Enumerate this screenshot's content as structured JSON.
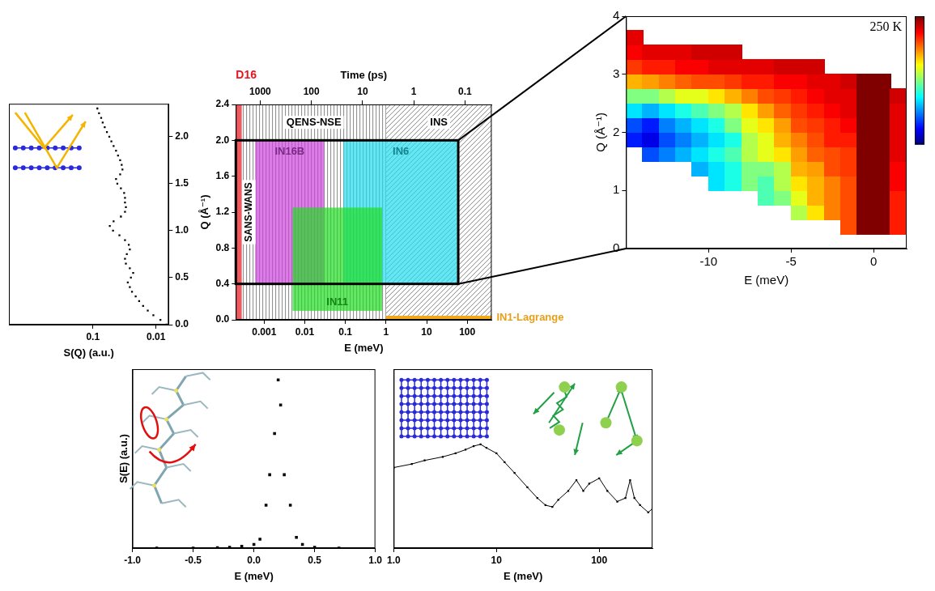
{
  "chart_data": [
    {
      "type": "scatter",
      "x_label": "S(Q) (a.u.)",
      "log": "x",
      "grid": false,
      "color": "#000000",
      "marker": "square",
      "xlim": [
        2.15,
        0.0063
      ],
      "xticks": [
        0.1,
        0.01
      ],
      "ylim": [
        0,
        2.35
      ],
      "yticks": [
        {
          "value": 0,
          "label": "0.0"
        },
        0.5,
        {
          "value": 1,
          "label": "1.0"
        },
        1.5,
        {
          "value": 2,
          "label": "2.0"
        }
      ],
      "x": [
        0.0068,
        0.0085,
        0.011,
        0.0135,
        0.016,
        0.0185,
        0.021,
        0.024,
        0.026,
        0.028,
        0.025,
        0.023,
        0.026,
        0.03,
        0.031,
        0.029,
        0.026,
        0.027,
        0.031,
        0.038,
        0.048,
        0.054,
        0.047,
        0.036,
        0.031,
        0.03,
        0.031,
        0.031,
        0.032,
        0.036,
        0.041,
        0.043,
        0.037,
        0.034,
        0.035,
        0.037,
        0.04,
        0.043,
        0.047,
        0.051,
        0.055,
        0.06,
        0.065,
        0.07,
        0.074,
        0.08,
        0.085
      ],
      "values": [
        0,
        0.05,
        0.1,
        0.15,
        0.2,
        0.25,
        0.3,
        0.35,
        0.4,
        0.45,
        0.5,
        0.55,
        0.6,
        0.65,
        0.7,
        0.75,
        0.8,
        0.85,
        0.9,
        0.95,
        1.0,
        1.05,
        1.1,
        1.15,
        1.2,
        1.25,
        1.3,
        1.35,
        1.4,
        1.45,
        1.5,
        1.55,
        1.6,
        1.65,
        1.7,
        1.75,
        1.8,
        1.85,
        1.9,
        1.95,
        2.0,
        2.05,
        2.1,
        2.15,
        2.2,
        2.25,
        2.3
      ]
    },
    {
      "type": "coverage",
      "x_label": "E (meV)",
      "y_label": "Q (Å⁻¹)",
      "x2_label": "Time (ps)",
      "log": "x",
      "grid": false,
      "xlim": [
        0.0002,
        400
      ],
      "xticks": [
        0.001,
        0.01,
        0.1,
        1,
        10,
        100
      ],
      "x2lim": [
        3000,
        0.03
      ],
      "x2ticks": [
        1000,
        100,
        10,
        1,
        0.1
      ],
      "ylim": [
        0,
        2.4
      ],
      "yticks": [
        {
          "value": 0,
          "label": "0.0"
        },
        0.4,
        0.8,
        1.2,
        1.6,
        {
          "value": 2,
          "label": "2.0"
        },
        2.4
      ],
      "regions": [
        {
          "name": "QENS-NSE",
          "line_style": "vertical",
          "xlim": [
            0.00028,
            1
          ],
          "ylim": [
            0,
            2.4
          ]
        },
        {
          "name": "INS",
          "line_style": "diagonal",
          "xlim": [
            1,
            400
          ],
          "ylim": [
            0,
            2.4
          ]
        },
        {
          "name": "D16",
          "color": "#e8141e",
          "xlim": [
            0.0002,
            0.00028
          ],
          "ylim": [
            0,
            2.4
          ]
        },
        {
          "name": "IN16B",
          "color": "#cc44dd",
          "xlim": [
            0.0006,
            0.03
          ],
          "ylim": [
            0.4,
            2
          ]
        },
        {
          "name": "IN6",
          "color": "#22ddee",
          "xlim": [
            0.09,
            60
          ],
          "ylim": [
            0.4,
            2
          ]
        },
        {
          "name": "IN11",
          "color": "#22dd22",
          "xlim": [
            0.005,
            0.8
          ],
          "ylim": [
            0.1,
            1.25
          ]
        },
        {
          "name": "IN1-Lagrange",
          "color": "#f2a81d",
          "xlim": [
            1,
            400
          ],
          "ylim": [
            0,
            0.03
          ]
        }
      ],
      "zoom_box": {
        "xlim": [
          0.0002,
          60
        ],
        "ylim": [
          0.4,
          2
        ]
      },
      "annotations": [
        "SANS-WANS"
      ]
    },
    {
      "type": "heatmap",
      "x_label": "E (meV)",
      "y_label": "Q (Å⁻¹)",
      "grid": false,
      "xlim": [
        -15,
        2
      ],
      "xticks": [
        -10,
        -5,
        0
      ],
      "ylim": [
        0,
        4
      ],
      "yticks": [
        0,
        1,
        2,
        3,
        4
      ],
      "x_bins": [
        -15,
        -14,
        -13,
        -12,
        -11,
        -10,
        -9,
        -8,
        -7,
        -6,
        -5,
        -4,
        -3,
        -2,
        -1,
        0,
        1,
        2
      ],
      "y_bins": [
        0,
        0.25,
        0.5,
        0.75,
        1,
        1.25,
        1.5,
        1.75,
        2,
        2.25,
        2.5,
        2.75,
        3,
        3.25,
        3.5,
        3.75,
        4
      ],
      "cells": [
        [
          null,
          null,
          null,
          null,
          null,
          null,
          null,
          null,
          null,
          null,
          null,
          null,
          null,
          null,
          null,
          null,
          null
        ],
        [
          null,
          null,
          null,
          null,
          null,
          null,
          null,
          null,
          null,
          null,
          null,
          null,
          null,
          0.8,
          1.0,
          1.0,
          0.85
        ],
        [
          null,
          null,
          null,
          null,
          null,
          null,
          null,
          null,
          null,
          null,
          0.55,
          0.65,
          0.75,
          0.8,
          1.0,
          1.0,
          0.85
        ],
        [
          null,
          null,
          null,
          null,
          null,
          null,
          null,
          null,
          0.45,
          0.5,
          0.6,
          0.7,
          0.75,
          0.8,
          1.0,
          1.0,
          0.85
        ],
        [
          null,
          null,
          null,
          null,
          null,
          0.35,
          0.4,
          0.5,
          0.45,
          0.55,
          0.65,
          0.7,
          0.75,
          0.8,
          1.0,
          1.0,
          0.88
        ],
        [
          null,
          null,
          null,
          null,
          0.3,
          0.35,
          0.4,
          0.5,
          0.5,
          0.55,
          0.7,
          0.72,
          0.8,
          0.82,
          1.0,
          1.0,
          0.88
        ],
        [
          null,
          0.2,
          0.25,
          0.3,
          0.35,
          0.4,
          0.45,
          0.55,
          0.6,
          0.65,
          0.72,
          0.78,
          0.8,
          0.82,
          1.0,
          1.0,
          0.9
        ],
        [
          0.15,
          0.1,
          0.2,
          0.25,
          0.3,
          0.35,
          0.4,
          0.55,
          0.6,
          0.7,
          0.75,
          0.8,
          0.85,
          0.85,
          1.0,
          1.0,
          0.9
        ],
        [
          0.2,
          0.15,
          0.25,
          0.3,
          0.35,
          0.4,
          0.5,
          0.6,
          0.65,
          0.72,
          0.8,
          0.82,
          0.85,
          0.88,
          1.0,
          1.0,
          0.9
        ],
        [
          0.35,
          0.3,
          0.35,
          0.4,
          0.45,
          0.5,
          0.55,
          0.65,
          0.72,
          0.78,
          0.82,
          0.85,
          0.88,
          0.9,
          1.0,
          1.0,
          0.9
        ],
        [
          0.5,
          0.5,
          0.55,
          0.6,
          0.6,
          0.65,
          0.7,
          0.75,
          0.8,
          0.82,
          0.85,
          0.88,
          0.9,
          0.9,
          1.0,
          1.0,
          0.92
        ],
        [
          0.7,
          0.72,
          0.75,
          0.78,
          0.8,
          0.8,
          0.82,
          0.85,
          0.85,
          0.88,
          0.88,
          0.9,
          0.9,
          0.92,
          1.0,
          1.0,
          null
        ],
        [
          0.82,
          0.85,
          0.85,
          0.88,
          0.88,
          0.9,
          0.9,
          0.9,
          0.9,
          0.92,
          0.92,
          0.92,
          null,
          null,
          null,
          null,
          null
        ],
        [
          0.88,
          0.9,
          0.9,
          0.9,
          0.92,
          0.92,
          0.92,
          null,
          null,
          null,
          null,
          null,
          null,
          null,
          null,
          null,
          null
        ],
        [
          0.9,
          null,
          null,
          null,
          null,
          null,
          null,
          null,
          null,
          null,
          null,
          null,
          null,
          null,
          null,
          null,
          null
        ],
        [
          null,
          null,
          null,
          null,
          null,
          null,
          null,
          null,
          null,
          null,
          null,
          null,
          null,
          null,
          null,
          null,
          null
        ]
      ],
      "colorbar_range": [
        0,
        1
      ],
      "annotations": [
        "250 K"
      ]
    },
    {
      "type": "scatter",
      "x_label": "E (meV)",
      "y_label": "S(E) (a.u.)",
      "grid": false,
      "color": "#000000",
      "marker": "square",
      "tick_labels": "x",
      "xlim": [
        -1,
        1
      ],
      "xticks": [
        {
          "value": -1,
          "label": "-1.0"
        },
        -0.5,
        {
          "value": 0,
          "label": "0.0"
        },
        0.5,
        {
          "value": 1,
          "label": "1.0"
        }
      ],
      "ylim": [
        0,
        1
      ],
      "x": [
        -0.8,
        -0.5,
        -0.3,
        -0.2,
        -0.1,
        0.0,
        0.05,
        0.1,
        0.13,
        0.17,
        0.2,
        0.22,
        0.25,
        0.3,
        0.35,
        0.4,
        0.5,
        0.7
      ],
      "values": [
        0.0,
        0.0,
        0.002,
        0.005,
        0.01,
        0.02,
        0.05,
        0.24,
        0.41,
        0.64,
        0.94,
        0.8,
        0.41,
        0.24,
        0.06,
        0.02,
        0.005,
        0.0
      ]
    },
    {
      "type": "scatter",
      "x_label": "E (meV)",
      "log": "x",
      "grid": false,
      "color": "#000000",
      "marker": "square",
      "line_style": "solid",
      "tick_labels": "x",
      "xlim": [
        1,
        330
      ],
      "xticks": [
        {
          "value": 1,
          "label": "1.0"
        },
        10,
        100
      ],
      "ylim": [
        0,
        1
      ],
      "x": [
        1,
        1.5,
        2,
        3,
        4,
        5,
        6,
        7,
        8,
        10,
        12,
        15,
        20,
        25,
        30,
        35,
        40,
        50,
        60,
        70,
        80,
        100,
        120,
        150,
        180,
        200,
        220,
        250,
        300,
        330
      ],
      "values": [
        0.45,
        0.47,
        0.49,
        0.51,
        0.53,
        0.55,
        0.57,
        0.58,
        0.56,
        0.53,
        0.48,
        0.42,
        0.34,
        0.28,
        0.24,
        0.23,
        0.27,
        0.32,
        0.38,
        0.32,
        0.36,
        0.39,
        0.32,
        0.26,
        0.28,
        0.38,
        0.28,
        0.24,
        0.2,
        0.22
      ]
    }
  ]
}
